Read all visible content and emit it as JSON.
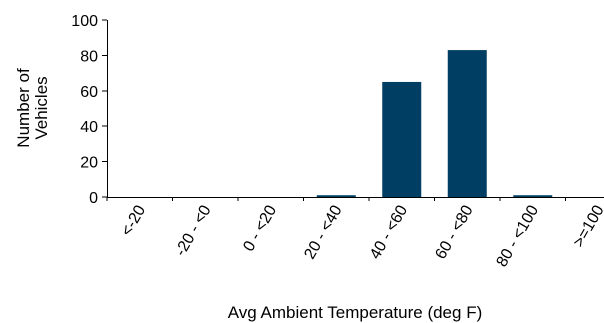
{
  "chart_data": {
    "type": "bar",
    "categories": [
      "<-20",
      "-20 - <0",
      "0 - <20",
      "20 - <40",
      "40 - <60",
      "60 - <80",
      "80 - <100",
      ">=100"
    ],
    "values": [
      0,
      0,
      0,
      1,
      65,
      83,
      1,
      0
    ],
    "xlabel": "Avg Ambient Temperature (deg F)",
    "ylabel_lines": [
      "Number of",
      "Vehicles"
    ],
    "ylim": [
      0,
      100
    ],
    "yticks": [
      0,
      20,
      40,
      60,
      80,
      100
    ],
    "grid": false,
    "legend": "none",
    "bar_color": "#003f63"
  }
}
